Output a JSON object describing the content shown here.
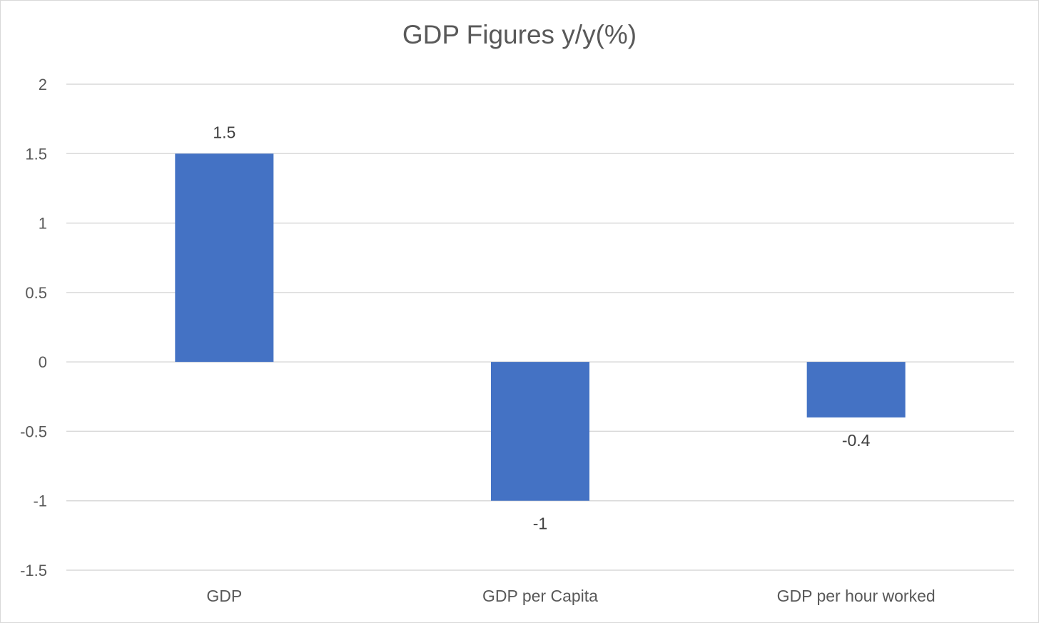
{
  "chart_data": {
    "type": "bar",
    "title": "GDP Figures y/y(%)",
    "categories": [
      "GDP",
      "GDP per Capita",
      "GDP per hour worked"
    ],
    "values": [
      1.5,
      -1,
      -0.4
    ],
    "data_labels": [
      "1.5",
      "-1",
      "-0.4"
    ],
    "ylim": [
      -1.5,
      2
    ],
    "yticks": [
      2,
      1.5,
      1,
      0.5,
      0,
      -0.5,
      -1,
      -1.5
    ],
    "ytick_labels": [
      "2",
      "1.5",
      "1",
      "0.5",
      "0",
      "-0.5",
      "-1",
      "-1.5"
    ],
    "xlabel": "",
    "ylabel": "",
    "grid": true,
    "legend": "none",
    "bar_color": "#4472C4"
  }
}
